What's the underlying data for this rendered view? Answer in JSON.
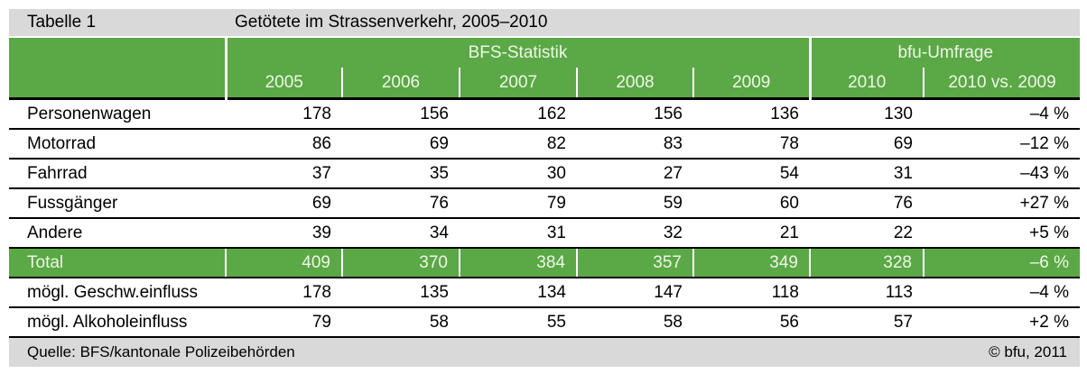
{
  "title_bar": {
    "label": "Tabelle 1",
    "title": "Getötete im Strassenverkehr, 2005–2010"
  },
  "footer": {
    "source": "Quelle: BFS/kantonale Polizeibehörden",
    "copyright": "© bfu, 2011"
  },
  "colors": {
    "accent_green": "#5ba846",
    "bar_gray": "#d9d9d9",
    "header_text": "#eef7e6",
    "line_black": "#000000"
  },
  "chart_data": {
    "type": "table",
    "title": "Getötete im Strassenverkehr, 2005–2010",
    "table_number": "Tabelle 1",
    "columns": [
      "",
      "2005",
      "2006",
      "2007",
      "2008",
      "2009",
      "2010",
      "2010 vs. 2009"
    ],
    "column_groups": [
      {
        "label": "BFS-Statistik",
        "columns": [
          "2005",
          "2006",
          "2007",
          "2008",
          "2009"
        ]
      },
      {
        "label": "bfu-Umfrage",
        "columns": [
          "2010",
          "2010 vs. 2009"
        ]
      }
    ],
    "rows": [
      {
        "label": "Personenwagen",
        "values": [
          178,
          156,
          162,
          156,
          136,
          130
        ],
        "change": "–4 %",
        "emphasis": false
      },
      {
        "label": "Motorrad",
        "values": [
          86,
          69,
          82,
          83,
          78,
          69
        ],
        "change": "–12 %",
        "emphasis": false
      },
      {
        "label": "Fahrrad",
        "values": [
          37,
          35,
          30,
          27,
          54,
          31
        ],
        "change": "–43 %",
        "emphasis": false
      },
      {
        "label": "Fussgänger",
        "values": [
          69,
          76,
          79,
          59,
          60,
          76
        ],
        "change": "+27 %",
        "emphasis": false
      },
      {
        "label": "Andere",
        "values": [
          39,
          34,
          31,
          32,
          21,
          22
        ],
        "change": "+5 %",
        "emphasis": false
      },
      {
        "label": "Total",
        "values": [
          409,
          370,
          384,
          357,
          349,
          328
        ],
        "change": "–6 %",
        "emphasis": true
      },
      {
        "label": "mögl. Geschw.einfluss",
        "values": [
          178,
          135,
          134,
          147,
          118,
          113
        ],
        "change": "–4 %",
        "emphasis": false
      },
      {
        "label": "mögl. Alkoholeinfluss",
        "values": [
          79,
          58,
          55,
          58,
          56,
          57
        ],
        "change": "+2 %",
        "emphasis": false
      }
    ],
    "source": "Quelle: BFS/kantonale Polizeibehörden",
    "copyright": "© bfu, 2011",
    "layout": {
      "grid": "horizontal black rules between rows",
      "legend_position": "none"
    }
  }
}
